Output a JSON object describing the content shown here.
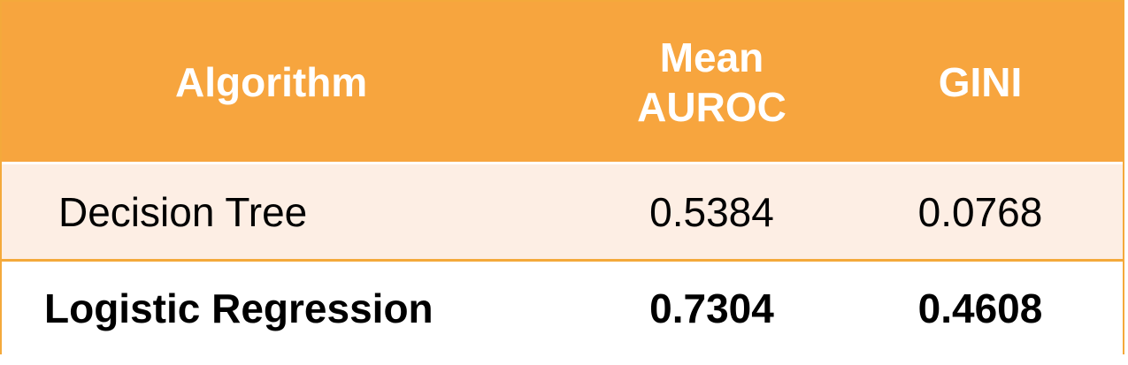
{
  "table": {
    "headers": {
      "algorithm": "Algorithm",
      "mean_auroc_line1": "Mean",
      "mean_auroc_line2": "AUROC",
      "gini": "GINI"
    },
    "rows": [
      {
        "algorithm": "Decision Tree",
        "mean_auroc": "0.5384",
        "gini": "0.0768",
        "bold": false
      },
      {
        "algorithm": "Logistic Regression",
        "mean_auroc": "0.7304",
        "gini": "0.4608",
        "bold": true
      }
    ],
    "colors": {
      "header_bg": "#f7a53e",
      "border": "#f4a93b",
      "row1_bg": "#fdeee4",
      "row2_bg": "#ffffff",
      "header_text": "#ffffff"
    }
  }
}
